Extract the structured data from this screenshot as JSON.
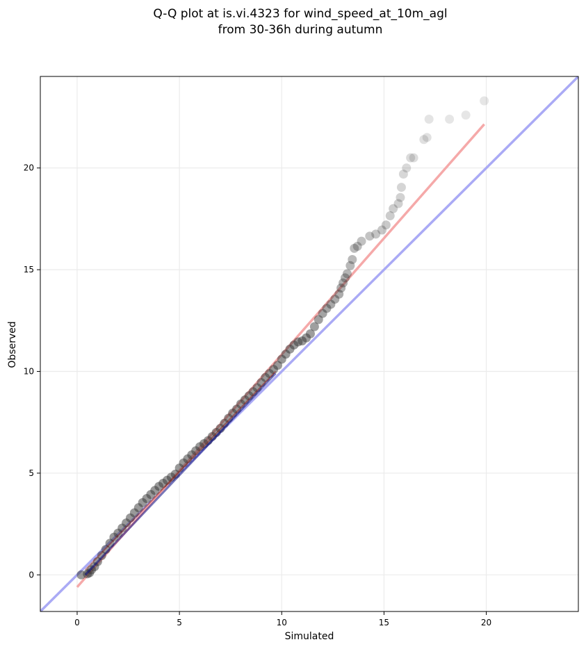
{
  "chart_data": {
    "type": "scatter",
    "title_lines": [
      "Q-Q plot at is.vi.4323 for wind_speed_at_10m_agl",
      "from 30-36h during autumn"
    ],
    "xlabel": "Simulated",
    "ylabel": "Observed",
    "xlim": [
      -1.8,
      24.5
    ],
    "ylim": [
      -1.8,
      24.5
    ],
    "x_ticks": [
      0,
      5,
      10,
      15,
      20
    ],
    "y_ticks": [
      0,
      5,
      10,
      15,
      20
    ],
    "grid": true,
    "colors": {
      "points": "#333333",
      "identity_line": "#aaaaf5",
      "fit_line": "#f5a9a9",
      "dense_band": "#0a0a80",
      "dense_fit": "#8a1010"
    },
    "identity_line": {
      "x": [
        -1.8,
        24.5
      ],
      "y": [
        -1.8,
        24.5
      ]
    },
    "fit_line": {
      "x": [
        0.0,
        19.9
      ],
      "y": [
        -0.6,
        22.15
      ]
    },
    "dense_segment": {
      "x": [
        0.4,
        9.7
      ],
      "y": [
        0.0,
        9.9
      ]
    },
    "points": [
      [
        0.2,
        0.0
      ],
      [
        0.5,
        0.05
      ],
      [
        0.6,
        0.1
      ],
      [
        0.7,
        0.25
      ],
      [
        0.85,
        0.4
      ],
      [
        1.0,
        0.65
      ],
      [
        1.2,
        0.95
      ],
      [
        1.4,
        1.25
      ],
      [
        1.6,
        1.55
      ],
      [
        1.8,
        1.85
      ],
      [
        2.0,
        2.05
      ],
      [
        2.2,
        2.3
      ],
      [
        2.4,
        2.55
      ],
      [
        2.6,
        2.8
      ],
      [
        2.8,
        3.05
      ],
      [
        3.0,
        3.3
      ],
      [
        3.2,
        3.55
      ],
      [
        3.4,
        3.75
      ],
      [
        3.6,
        3.95
      ],
      [
        3.8,
        4.15
      ],
      [
        4.0,
        4.35
      ],
      [
        4.2,
        4.5
      ],
      [
        4.4,
        4.65
      ],
      [
        4.6,
        4.8
      ],
      [
        4.8,
        4.95
      ],
      [
        5.0,
        5.25
      ],
      [
        5.2,
        5.5
      ],
      [
        5.4,
        5.7
      ],
      [
        5.6,
        5.9
      ],
      [
        5.8,
        6.1
      ],
      [
        6.0,
        6.3
      ],
      [
        6.2,
        6.45
      ],
      [
        6.4,
        6.6
      ],
      [
        6.6,
        6.8
      ],
      [
        6.8,
        7.0
      ],
      [
        7.0,
        7.2
      ],
      [
        7.2,
        7.45
      ],
      [
        7.4,
        7.7
      ],
      [
        7.6,
        7.95
      ],
      [
        7.8,
        8.15
      ],
      [
        8.0,
        8.4
      ],
      [
        8.2,
        8.6
      ],
      [
        8.4,
        8.8
      ],
      [
        8.6,
        9.0
      ],
      [
        8.8,
        9.2
      ],
      [
        9.0,
        9.45
      ],
      [
        9.2,
        9.7
      ],
      [
        9.4,
        9.9
      ],
      [
        9.6,
        10.1
      ],
      [
        9.8,
        10.3
      ],
      [
        10.0,
        10.6
      ],
      [
        10.2,
        10.85
      ],
      [
        10.4,
        11.1
      ],
      [
        10.6,
        11.3
      ],
      [
        10.8,
        11.45
      ],
      [
        11.0,
        11.5
      ],
      [
        11.2,
        11.65
      ],
      [
        11.4,
        11.85
      ],
      [
        11.6,
        12.2
      ],
      [
        11.8,
        12.55
      ],
      [
        12.0,
        12.85
      ],
      [
        12.2,
        13.1
      ],
      [
        12.4,
        13.3
      ],
      [
        12.6,
        13.55
      ],
      [
        12.8,
        13.8
      ],
      [
        12.9,
        14.1
      ],
      [
        13.0,
        14.35
      ],
      [
        13.1,
        14.6
      ],
      [
        13.2,
        14.8
      ],
      [
        13.35,
        15.2
      ],
      [
        13.45,
        15.5
      ],
      [
        13.55,
        16.05
      ],
      [
        13.7,
        16.15
      ],
      [
        13.9,
        16.4
      ],
      [
        14.3,
        16.65
      ],
      [
        14.6,
        16.75
      ],
      [
        14.9,
        16.95
      ],
      [
        15.1,
        17.2
      ],
      [
        15.3,
        17.65
      ],
      [
        15.45,
        18.0
      ],
      [
        15.7,
        18.25
      ],
      [
        15.8,
        18.55
      ],
      [
        15.85,
        19.05
      ],
      [
        15.95,
        19.7
      ],
      [
        16.1,
        20.0
      ],
      [
        16.3,
        20.5
      ],
      [
        16.45,
        20.5
      ],
      [
        16.95,
        21.4
      ],
      [
        17.1,
        21.5
      ],
      [
        17.2,
        22.4
      ],
      [
        18.2,
        22.4
      ],
      [
        19.0,
        22.6
      ],
      [
        19.9,
        23.3
      ]
    ]
  }
}
